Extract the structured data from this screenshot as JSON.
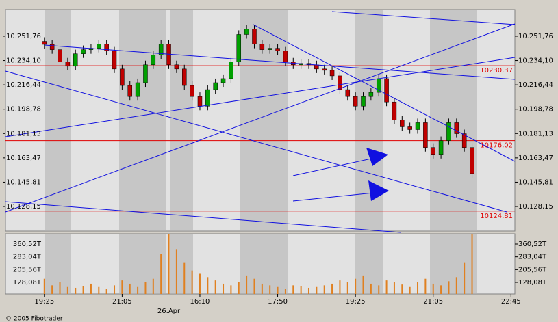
{
  "chart_data": [
    {
      "type": "candlestick",
      "open": [
        10248,
        10245.8,
        10242,
        10233,
        10230,
        10239,
        10242,
        10243,
        10246,
        10241,
        10228,
        10216,
        10208,
        10218,
        10231,
        10238,
        10246,
        10231,
        10228,
        10216,
        10208,
        10201,
        10213,
        10218,
        10221,
        10233,
        10253,
        10257,
        10246,
        10242,
        10243,
        10241,
        10233,
        10231,
        10232,
        10231,
        10228,
        10227,
        10223,
        10213,
        10208,
        10201,
        10208,
        10211,
        10221,
        10204,
        10191,
        10186,
        10184,
        10189,
        10171,
        10166,
        10176,
        10189,
        10181,
        10171
      ],
      "high": [
        10251,
        10249,
        10245,
        10236,
        10242,
        10245,
        10246,
        10249,
        10249,
        10244,
        10231,
        10219,
        10221,
        10234,
        10241,
        10249,
        10249,
        10234,
        10231,
        10219,
        10211,
        10216,
        10221,
        10224,
        10236,
        10256,
        10260,
        10260,
        10249,
        10246,
        10246,
        10244,
        10236,
        10235,
        10235,
        10234,
        10231,
        10230,
        10226,
        10216,
        10211,
        10211,
        10214,
        10224,
        10224,
        10207,
        10194,
        10189,
        10192,
        10192,
        10174,
        10179,
        10192,
        10192,
        10184,
        10174
      ],
      "low": [
        10242.8,
        10239,
        10230,
        10227,
        10227,
        10236,
        10239,
        10240,
        10238,
        10225,
        10213,
        10205,
        10205,
        10215,
        10228,
        10235,
        10228,
        10225,
        10213,
        10205,
        10198,
        10198,
        10210,
        10215,
        10218,
        10230,
        10250,
        10243,
        10239,
        10239,
        10238,
        10230,
        10228,
        10228,
        10228,
        10225,
        10224,
        10220,
        10210,
        10205,
        10198,
        10198,
        10205,
        10208,
        10201,
        10188,
        10183,
        10181,
        10181,
        10168,
        10163,
        10163,
        10173,
        10178,
        10168,
        10149
      ],
      "close": [
        10245.8,
        10242,
        10233,
        10230,
        10239,
        10242,
        10243,
        10246,
        10241,
        10228,
        10216,
        10208,
        10218,
        10231,
        10238,
        10246,
        10231,
        10228,
        10216,
        10208,
        10201,
        10213,
        10218,
        10221,
        10233,
        10253,
        10257,
        10246,
        10242,
        10243,
        10241,
        10233,
        10231,
        10232,
        10231,
        10228,
        10227,
        10223,
        10213,
        10208,
        10201,
        10208,
        10211,
        10221,
        10204,
        10191,
        10186,
        10184,
        10189,
        10171,
        10166,
        10176,
        10189,
        10181,
        10171,
        10152
      ],
      "up_color": "#00a000",
      "down_color": "#c00000",
      "ylim": [
        10110.3,
        10271.1
      ],
      "yticks": [
        {
          "value": 10251.76,
          "label": "10.251,76"
        },
        {
          "value": 10234.1,
          "label": "10.234,10"
        },
        {
          "value": 10216.44,
          "label": "10.216,44"
        },
        {
          "value": 10198.78,
          "label": "10.198,78"
        },
        {
          "value": 10181.13,
          "label": "10.181,13"
        },
        {
          "value": 10163.47,
          "label": "10.163,47"
        },
        {
          "value": 10145.81,
          "label": "10.145,81"
        },
        {
          "value": 10128.15,
          "label": "10.128,15"
        }
      ],
      "levels": [
        {
          "value": 10230.37,
          "label": "10230,37"
        },
        {
          "value": 10176.02,
          "label": "10176,02"
        },
        {
          "value": 10124.81,
          "label": "10124,81"
        }
      ],
      "level_color": "#e00000",
      "xlim": [
        -5,
        60.5
      ],
      "xticks": [
        {
          "value": 0,
          "label": "19:25"
        },
        {
          "value": 10,
          "label": "21:05"
        },
        {
          "value": 20,
          "label": "16:10"
        },
        {
          "value": 30,
          "label": "17:50"
        },
        {
          "value": 40,
          "label": "19:25"
        },
        {
          "value": 50,
          "label": "21:05"
        },
        {
          "value": 60,
          "label": "22:45"
        }
      ],
      "date_label": {
        "value": 16,
        "label": "26.Apr"
      }
    },
    {
      "type": "bar",
      "values": [
        150,
        110,
        130,
        100,
        95,
        105,
        120,
        100,
        90,
        110,
        140,
        120,
        100,
        130,
        150,
        300,
        420,
        330,
        250,
        200,
        180,
        160,
        140,
        120,
        110,
        130,
        170,
        150,
        120,
        110,
        100,
        90,
        110,
        105,
        95,
        100,
        110,
        120,
        140,
        130,
        150,
        170,
        120,
        110,
        140,
        130,
        115,
        100,
        130,
        150,
        120,
        110,
        135,
        160,
        250,
        420
      ],
      "color": "#e08020",
      "ylim": [
        57.5,
        422.8
      ],
      "yticks": [
        {
          "value": 360.52,
          "label": "360,52T"
        },
        {
          "value": 283.04,
          "label": "283,04T"
        },
        {
          "value": 205.56,
          "label": "205,56T"
        },
        {
          "value": 128.08,
          "label": "128,08T"
        }
      ]
    }
  ],
  "footer": "© 2005 Fibotrader"
}
